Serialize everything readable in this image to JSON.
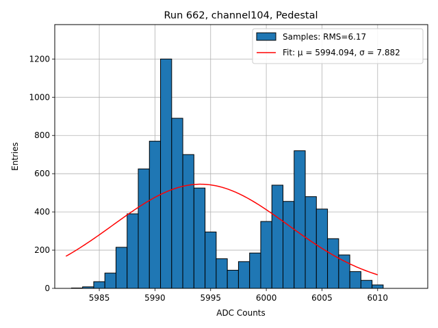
{
  "chart_data": {
    "type": "bar",
    "title": "Run 662, channel104, Pedestal",
    "xlabel": "ADC Counts",
    "ylabel": "Entries",
    "xlim": [
      5981,
      6014.5
    ],
    "ylim": [
      0,
      1380
    ],
    "xticks": [
      5985,
      5990,
      5995,
      6000,
      6005,
      6010
    ],
    "yticks": [
      0,
      200,
      400,
      600,
      800,
      1000,
      1200
    ],
    "grid": true,
    "legend_position": "top-right",
    "bin_width": 1,
    "bins": [
      {
        "left": 5982.5,
        "value": 2
      },
      {
        "left": 5983.5,
        "value": 8
      },
      {
        "left": 5984.5,
        "value": 35
      },
      {
        "left": 5985.5,
        "value": 80
      },
      {
        "left": 5986.5,
        "value": 215
      },
      {
        "left": 5987.5,
        "value": 390
      },
      {
        "left": 5988.5,
        "value": 625
      },
      {
        "left": 5989.5,
        "value": 770
      },
      {
        "left": 5990.5,
        "value": 1200
      },
      {
        "left": 5991.5,
        "value": 890
      },
      {
        "left": 5992.5,
        "value": 700
      },
      {
        "left": 5993.5,
        "value": 525
      },
      {
        "left": 5994.5,
        "value": 295
      },
      {
        "left": 5995.5,
        "value": 155
      },
      {
        "left": 5996.5,
        "value": 95
      },
      {
        "left": 5997.5,
        "value": 140
      },
      {
        "left": 5998.5,
        "value": 185
      },
      {
        "left": 5999.5,
        "value": 350
      },
      {
        "left": 6000.5,
        "value": 540
      },
      {
        "left": 6001.5,
        "value": 455
      },
      {
        "left": 6002.5,
        "value": 720
      },
      {
        "left": 6003.5,
        "value": 480
      },
      {
        "left": 6004.5,
        "value": 415
      },
      {
        "left": 6005.5,
        "value": 260
      },
      {
        "left": 6006.5,
        "value": 175
      },
      {
        "left": 6007.5,
        "value": 88
      },
      {
        "left": 6008.5,
        "value": 42
      },
      {
        "left": 6009.5,
        "value": 18
      }
    ],
    "fit": {
      "mu": 5994.094,
      "sigma": 7.882,
      "amplitude": 545,
      "x_range": [
        5982,
        6010
      ]
    },
    "series": [
      {
        "name": "Samples: RMS=6.17",
        "type": "histogram",
        "color": "#1f77b4"
      },
      {
        "name": "Fit: μ = 5994.094, σ = 7.882",
        "type": "line",
        "color": "#ff0000"
      }
    ]
  }
}
